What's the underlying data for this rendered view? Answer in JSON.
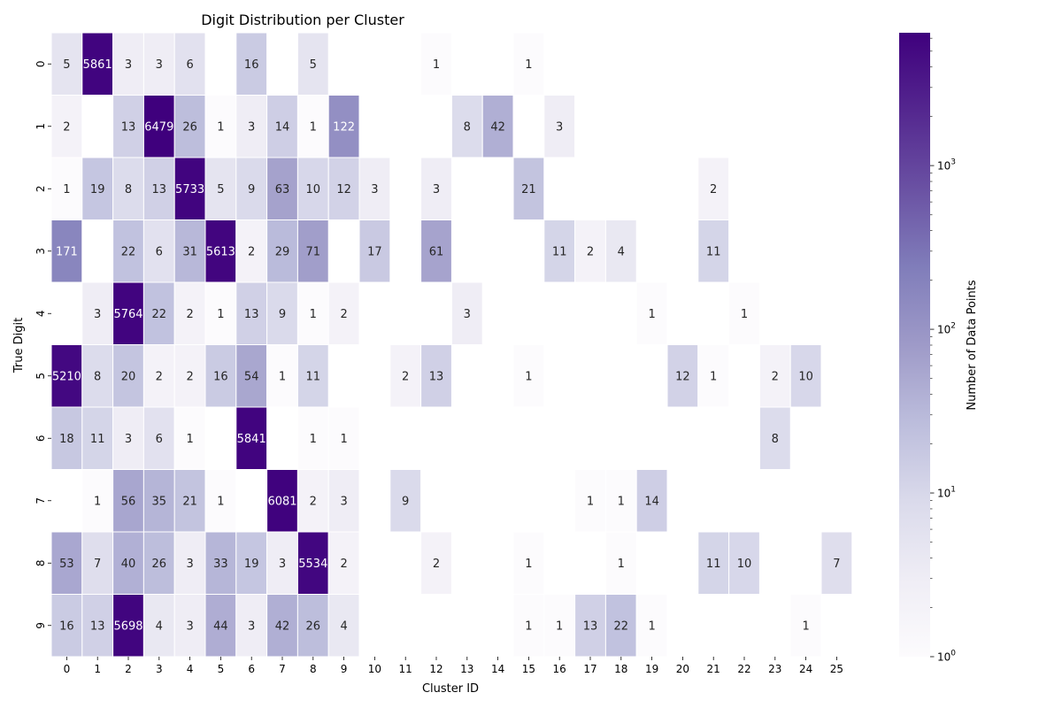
{
  "chart_data": {
    "type": "heatmap",
    "title": "Digit Distribution per Cluster",
    "xlabel": "Cluster ID",
    "ylabel": "True Digit",
    "colorbar_label": "Number of Data Points",
    "colorbar_scale": "log",
    "colorbar_range": [
      1,
      6479
    ],
    "colorbar_ticks": [
      {
        "base": "10",
        "exp": "0"
      },
      {
        "base": "10",
        "exp": "1"
      },
      {
        "base": "10",
        "exp": "2"
      },
      {
        "base": "10",
        "exp": "3"
      }
    ],
    "colormap": [
      "#fcfbfd",
      "#efedf5",
      "#dadaeb",
      "#bcbddc",
      "#9e9ac8",
      "#807dba",
      "#6a51a3",
      "#54278f",
      "#3f007d"
    ],
    "x_labels": [
      "0",
      "1",
      "2",
      "3",
      "4",
      "5",
      "6",
      "7",
      "8",
      "9",
      "10",
      "11",
      "12",
      "13",
      "14",
      "15",
      "16",
      "17",
      "18",
      "19",
      "20",
      "21",
      "22",
      "23",
      "24",
      "25"
    ],
    "y_labels": [
      "0",
      "1",
      "2",
      "3",
      "4",
      "5",
      "6",
      "7",
      "8",
      "9"
    ],
    "values": [
      [
        5,
        5861,
        3,
        3,
        6,
        null,
        16,
        null,
        5,
        null,
        null,
        null,
        1,
        null,
        null,
        1,
        null,
        null,
        null,
        null,
        null,
        null,
        null,
        null,
        null,
        null
      ],
      [
        2,
        null,
        13,
        6479,
        26,
        1,
        3,
        14,
        1,
        122,
        null,
        null,
        null,
        8,
        42,
        null,
        3,
        null,
        null,
        null,
        null,
        null,
        null,
        null,
        null,
        null
      ],
      [
        1,
        19,
        8,
        13,
        5733,
        5,
        9,
        63,
        10,
        12,
        3,
        null,
        3,
        null,
        null,
        21,
        null,
        null,
        null,
        null,
        null,
        2,
        null,
        null,
        null,
        null
      ],
      [
        171,
        null,
        22,
        6,
        31,
        5613,
        2,
        29,
        71,
        null,
        17,
        null,
        61,
        null,
        null,
        null,
        11,
        2,
        4,
        null,
        null,
        11,
        null,
        null,
        null,
        null
      ],
      [
        null,
        3,
        5764,
        22,
        2,
        1,
        13,
        9,
        1,
        2,
        null,
        null,
        null,
        3,
        null,
        null,
        null,
        null,
        null,
        1,
        null,
        null,
        1,
        null,
        null,
        null
      ],
      [
        5210,
        8,
        20,
        2,
        2,
        16,
        54,
        1,
        11,
        null,
        null,
        2,
        13,
        null,
        null,
        1,
        null,
        null,
        null,
        null,
        12,
        1,
        null,
        2,
        10,
        null
      ],
      [
        18,
        11,
        3,
        6,
        1,
        null,
        5841,
        null,
        1,
        1,
        null,
        null,
        null,
        null,
        null,
        null,
        null,
        null,
        null,
        null,
        null,
        null,
        null,
        8,
        null,
        null
      ],
      [
        null,
        1,
        56,
        35,
        21,
        1,
        null,
        6081,
        2,
        3,
        null,
        9,
        null,
        null,
        null,
        null,
        null,
        1,
        1,
        14,
        null,
        null,
        null,
        null,
        null,
        null
      ],
      [
        53,
        7,
        40,
        26,
        3,
        33,
        19,
        3,
        5534,
        2,
        null,
        null,
        2,
        null,
        null,
        1,
        null,
        null,
        1,
        null,
        null,
        11,
        10,
        null,
        null,
        7
      ],
      [
        16,
        13,
        5698,
        4,
        3,
        44,
        3,
        42,
        26,
        4,
        null,
        null,
        null,
        null,
        null,
        1,
        1,
        13,
        22,
        1,
        null,
        null,
        null,
        null,
        1,
        null
      ]
    ]
  }
}
